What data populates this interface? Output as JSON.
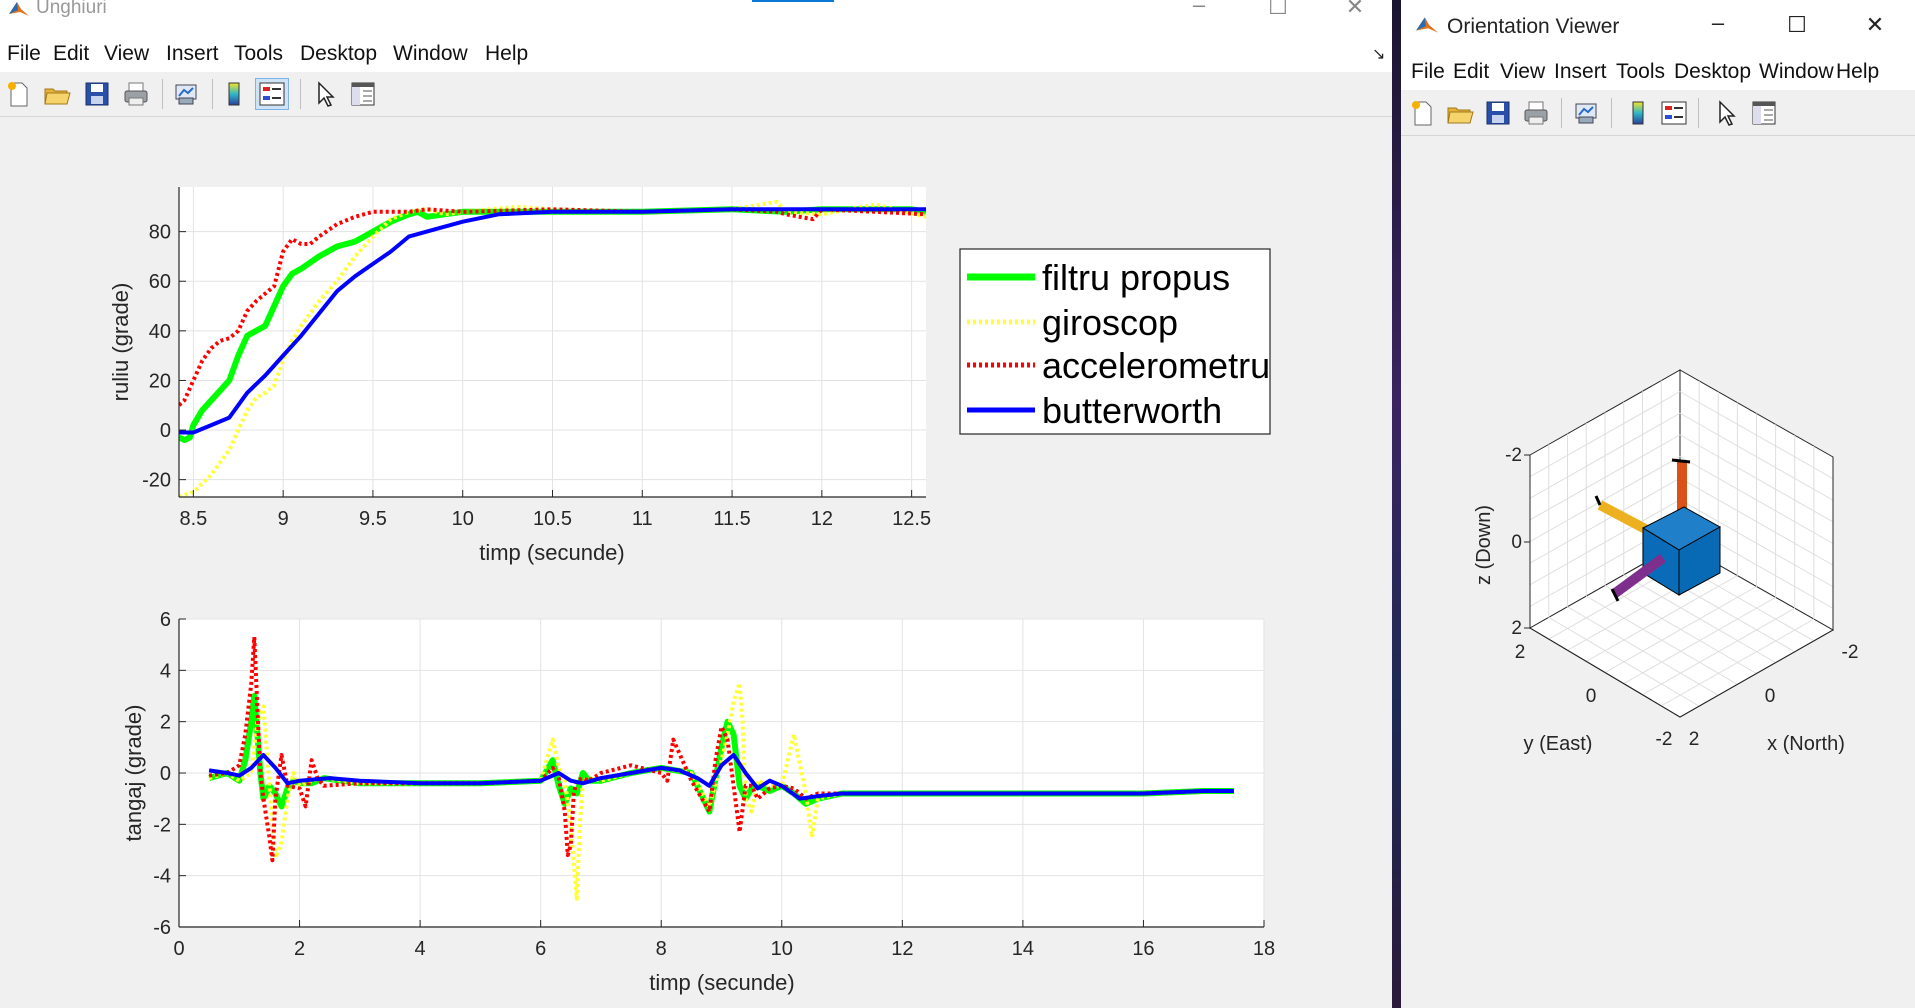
{
  "main_window": {
    "title": "Unghiuri",
    "menu": [
      "File",
      "Edit",
      "View",
      "Insert",
      "Tools",
      "Desktop",
      "Window",
      "Help"
    ],
    "toolbar_icons": [
      "new-file-icon",
      "open-folder-icon",
      "save-icon",
      "print-icon",
      "link-plot-icon",
      "colorbar-icon",
      "legend-icon",
      "pointer-icon",
      "property-inspector-icon"
    ]
  },
  "orient_window": {
    "title": "Orientation Viewer",
    "menu": [
      "File",
      "Edit",
      "View",
      "Insert",
      "Tools",
      "Desktop",
      "Window",
      "Help"
    ],
    "toolbar_icons": [
      "new-file-icon",
      "open-folder-icon",
      "save-icon",
      "print-icon",
      "link-plot-icon",
      "colorbar-icon",
      "legend-icon",
      "pointer-icon",
      "property-inspector-icon"
    ],
    "axes": {
      "xlabel": "x (North)",
      "ylabel": "y (East)",
      "zlabel": "z (Down)",
      "x_ticks": [
        "-2",
        "0",
        "2"
      ],
      "y_ticks": [
        "-2",
        "0",
        "2"
      ],
      "z_ticks": [
        "-2",
        "0",
        "2"
      ]
    }
  },
  "colors": {
    "filtru_propus": "#00ff00",
    "giroscop": "#ffff33",
    "accelerometru": "#ff0000",
    "butterworth": "#0000ff"
  },
  "chart_data": [
    {
      "type": "line",
      "xlabel": "timp (secunde)",
      "ylabel": "ruliu (grade)",
      "xlim": [
        8.42,
        12.58
      ],
      "ylim": [
        -27,
        98
      ],
      "x_ticks": [
        8.5,
        9,
        9.5,
        10,
        10.5,
        11,
        11.5,
        12,
        12.5
      ],
      "x_tick_labels": [
        "8.5",
        "9",
        "9.5",
        "10",
        "10.5",
        "11",
        "11.5",
        "12",
        "12.5"
      ],
      "y_ticks": [
        -20,
        0,
        20,
        40,
        60,
        80
      ],
      "y_tick_labels": [
        "-20",
        "0",
        "20",
        "40",
        "60",
        "80"
      ],
      "grid": true,
      "legend": "outside-right",
      "series": [
        {
          "name": "filtru propus",
          "style": "solid",
          "x": [
            8.42,
            8.45,
            8.48,
            8.5,
            8.55,
            8.6,
            8.7,
            8.75,
            8.8,
            8.85,
            8.9,
            8.95,
            9.0,
            9.05,
            9.1,
            9.2,
            9.3,
            9.4,
            9.5,
            9.6,
            9.7,
            9.75,
            9.8,
            10.0,
            10.5,
            11,
            11.5,
            11.8,
            12,
            12.5,
            12.58
          ],
          "y": [
            -3,
            -4,
            -3,
            2,
            8,
            12,
            20,
            30,
            38,
            40,
            42,
            50,
            58,
            63,
            65,
            70,
            74,
            76,
            80,
            84,
            87,
            88,
            86,
            88,
            88,
            88,
            89,
            88,
            89,
            89,
            88
          ]
        },
        {
          "name": "giroscop",
          "style": "dotted",
          "x": [
            8.42,
            8.5,
            8.6,
            8.7,
            8.75,
            8.8,
            8.85,
            8.9,
            8.95,
            9.0,
            9.05,
            9.1,
            9.2,
            9.3,
            9.4,
            9.5,
            9.6,
            9.7,
            9.8,
            9.9,
            10.0,
            10.3,
            10.5,
            11,
            11.5,
            11.75,
            11.8,
            12,
            12.3,
            12.58
          ],
          "y": [
            -27,
            -25,
            -18,
            -8,
            0,
            8,
            13,
            15,
            18,
            28,
            36,
            42,
            52,
            60,
            70,
            78,
            85,
            88,
            89,
            87,
            88,
            90,
            89,
            88,
            89,
            92,
            88,
            87,
            91,
            86
          ]
        },
        {
          "name": "accelerometru",
          "style": "dotted",
          "x": [
            8.42,
            8.45,
            8.5,
            8.55,
            8.6,
            8.65,
            8.7,
            8.75,
            8.8,
            8.85,
            8.9,
            8.95,
            9.0,
            9.05,
            9.1,
            9.15,
            9.2,
            9.3,
            9.4,
            9.5,
            9.6,
            9.7,
            9.8,
            10.0,
            10.5,
            11,
            11.5,
            11.75,
            11.8,
            11.95,
            12.0,
            12.3,
            12.58
          ],
          "y": [
            10,
            12,
            20,
            28,
            33,
            36,
            37,
            40,
            48,
            52,
            55,
            58,
            72,
            77,
            75,
            75,
            78,
            83,
            86,
            88,
            88,
            88,
            89,
            88,
            89,
            88,
            89,
            88,
            87,
            85,
            89,
            88,
            87
          ]
        },
        {
          "name": "butterworth",
          "style": "solid",
          "x": [
            8.42,
            8.5,
            8.6,
            8.7,
            8.8,
            8.9,
            9.0,
            9.1,
            9.2,
            9.3,
            9.4,
            9.5,
            9.6,
            9.7,
            9.8,
            10.0,
            10.2,
            10.5,
            11,
            11.5,
            12,
            12.58
          ],
          "y": [
            -1,
            -1,
            2,
            5,
            15,
            22,
            30,
            38,
            47,
            56,
            62,
            67,
            72,
            78,
            80,
            84,
            87,
            88,
            88,
            89,
            89,
            89
          ]
        }
      ]
    },
    {
      "type": "line",
      "xlabel": "timp (secunde)",
      "ylabel": "tangaj (grade)",
      "xlim": [
        0,
        18
      ],
      "ylim": [
        -6,
        6
      ],
      "x_ticks": [
        0,
        2,
        4,
        6,
        8,
        10,
        12,
        14,
        16,
        18
      ],
      "x_tick_labels": [
        "0",
        "2",
        "4",
        "6",
        "8",
        "10",
        "12",
        "14",
        "16",
        "18"
      ],
      "y_ticks": [
        -6,
        -4,
        -2,
        0,
        2,
        4,
        6
      ],
      "y_tick_labels": [
        "-6",
        "-4",
        "-2",
        "0",
        "2",
        "4",
        "6"
      ],
      "grid": true,
      "series": [
        {
          "name": "filtru propus",
          "style": "solid",
          "x": [
            0.5,
            0.8,
            1.0,
            1.1,
            1.2,
            1.25,
            1.3,
            1.35,
            1.4,
            1.5,
            1.6,
            1.7,
            1.8,
            1.9,
            2.0,
            2.2,
            2.4,
            3,
            4,
            5,
            6,
            6.2,
            6.3,
            6.4,
            6.5,
            6.6,
            6.7,
            6.8,
            7,
            7.5,
            8,
            8.5,
            8.8,
            9.0,
            9.1,
            9.2,
            9.3,
            9.4,
            9.5,
            9.6,
            9.8,
            10,
            10.2,
            10.4,
            10.6,
            11,
            12,
            13,
            14,
            15,
            16,
            17,
            17.5
          ],
          "y": [
            -0.2,
            0,
            -0.3,
            0.5,
            2,
            3,
            1.5,
            0,
            -1,
            -0.5,
            -0.8,
            -1.3,
            -0.6,
            -0.3,
            -0.4,
            -0.4,
            -0.2,
            -0.4,
            -0.4,
            -0.4,
            -0.3,
            0.5,
            -0.5,
            -1.2,
            -0.6,
            -0.8,
            0,
            -0.3,
            -0.3,
            0,
            0.2,
            0,
            -1.5,
            1,
            2,
            1.5,
            -0.5,
            -1,
            -0.6,
            -0.5,
            -0.7,
            -0.5,
            -0.8,
            -1.2,
            -1.0,
            -0.8,
            -0.8,
            -0.8,
            -0.8,
            -0.8,
            -0.8,
            -0.7,
            -0.7
          ]
        },
        {
          "name": "giroscop",
          "style": "dotted",
          "x": [
            0.5,
            0.8,
            1.0,
            1.2,
            1.3,
            1.4,
            1.5,
            1.6,
            1.7,
            1.8,
            1.9,
            2.0,
            2.2,
            2.4,
            3,
            4,
            5,
            6,
            6.2,
            6.3,
            6.4,
            6.5,
            6.55,
            6.6,
            6.65,
            6.7,
            6.8,
            7,
            7.5,
            8,
            8.5,
            8.8,
            9.0,
            9.1,
            9.2,
            9.3,
            9.35,
            9.4,
            9.5,
            9.6,
            9.8,
            10,
            10.2,
            10.4,
            10.5,
            10.6,
            11,
            12,
            13,
            14,
            15,
            16,
            17,
            17.5
          ],
          "y": [
            -0.2,
            0,
            -0.3,
            0,
            2,
            2.6,
            -0.5,
            -3.3,
            -2.7,
            -1,
            0,
            -0.5,
            -0.3,
            -0.2,
            -0.4,
            -0.4,
            -0.4,
            -0.3,
            1.3,
            0.2,
            -0.3,
            -2,
            -3.5,
            -4.9,
            -2,
            -0.3,
            -0.2,
            -0.3,
            0,
            0.2,
            0,
            -1.3,
            0.5,
            1.5,
            2.8,
            3.5,
            2,
            -1,
            -1.5,
            -0.3,
            -0.5,
            -0.5,
            1.5,
            -0.8,
            -2.5,
            -1,
            -0.8,
            -0.8,
            -0.8,
            -0.8,
            -0.8,
            -0.8,
            -0.7,
            -0.7
          ]
        },
        {
          "name": "accelerometru",
          "style": "dotted",
          "x": [
            0.5,
            0.8,
            1.0,
            1.1,
            1.2,
            1.25,
            1.3,
            1.35,
            1.4,
            1.5,
            1.55,
            1.6,
            1.7,
            1.8,
            2.0,
            2.1,
            2.2,
            2.3,
            2.4,
            3,
            4,
            5,
            6,
            6.2,
            6.3,
            6.4,
            6.45,
            6.5,
            6.55,
            6.6,
            6.7,
            6.8,
            7,
            7.5,
            8,
            8.1,
            8.2,
            8.5,
            8.8,
            8.9,
            9.0,
            9.1,
            9.2,
            9.3,
            9.4,
            9.5,
            9.6,
            9.8,
            10,
            10.2,
            10.4,
            10.6,
            11,
            12,
            13,
            14,
            15,
            16,
            17,
            17.5
          ],
          "y": [
            -0.1,
            0,
            0.3,
            1.5,
            3.5,
            5.3,
            2.5,
            0,
            -1,
            -2.5,
            -3.4,
            -1,
            0.7,
            -0.5,
            -0.6,
            -1.3,
            0.5,
            -0.2,
            -0.5,
            -0.4,
            -0.4,
            -0.4,
            -0.3,
            0.2,
            -0.2,
            -1.5,
            -3.2,
            -2.8,
            -0.8,
            -0.3,
            -0.2,
            -0.3,
            0,
            0.3,
            0,
            -0.3,
            1.3,
            -0.3,
            -1.5,
            0.5,
            1.8,
            1.3,
            -0.5,
            -2.3,
            -0.5,
            -0.5,
            -1,
            -0.6,
            -0.5,
            -0.6,
            -1,
            -0.8,
            -0.8,
            -0.8,
            -0.8,
            -0.8,
            -0.8,
            -0.8,
            -0.7,
            -0.7
          ]
        },
        {
          "name": "butterworth",
          "style": "solid",
          "x": [
            0.5,
            0.8,
            1.0,
            1.2,
            1.4,
            1.6,
            1.8,
            2.0,
            2.5,
            3,
            4,
            5,
            6,
            6.3,
            6.5,
            6.7,
            7,
            7.5,
            8,
            8.3,
            8.6,
            8.8,
            9.0,
            9.2,
            9.4,
            9.6,
            9.8,
            10,
            10.3,
            10.6,
            11,
            12,
            13,
            14,
            15,
            16,
            17,
            17.5
          ],
          "y": [
            0.1,
            0,
            -0.1,
            0.2,
            0.7,
            0.2,
            -0.4,
            -0.3,
            -0.2,
            -0.3,
            -0.4,
            -0.4,
            -0.3,
            0,
            -0.3,
            -0.4,
            -0.2,
            0,
            0.2,
            0.1,
            -0.2,
            -0.5,
            0.3,
            0.7,
            0,
            -0.6,
            -0.3,
            -0.5,
            -1.0,
            -0.9,
            -0.8,
            -0.8,
            -0.8,
            -0.8,
            -0.8,
            -0.8,
            -0.7,
            -0.7
          ]
        }
      ]
    }
  ]
}
